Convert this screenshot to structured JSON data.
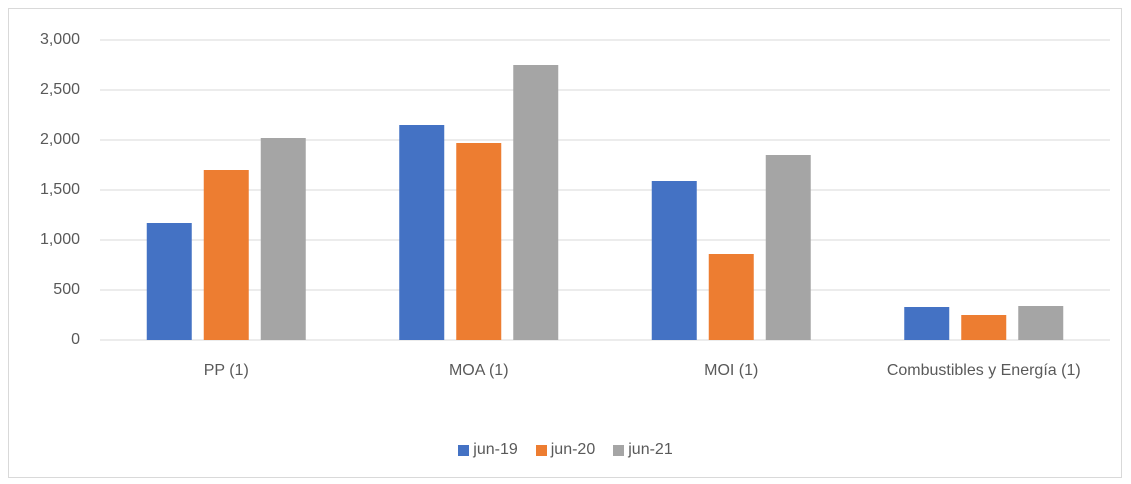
{
  "chart_data": {
    "type": "bar",
    "categories": [
      "PP  (1)",
      "MOA (1)",
      "MOI (1)",
      "Combustibles y Energía (1)"
    ],
    "series": [
      {
        "name": "jun-19",
        "color": "#4472c4",
        "values": [
          1170,
          2150,
          1590,
          330
        ]
      },
      {
        "name": "jun-20",
        "color": "#ed7d31",
        "values": [
          1700,
          1970,
          860,
          250
        ]
      },
      {
        "name": "jun-21",
        "color": "#a5a5a5",
        "values": [
          2020,
          2750,
          1850,
          340
        ]
      }
    ],
    "ylim": [
      0,
      3000
    ],
    "yticks": [
      0,
      500,
      {
        "value": 1000,
        "label": "1,000"
      },
      {
        "value": 1500,
        "label": "1,500"
      },
      {
        "value": 2000,
        "label": "2,000"
      },
      {
        "value": 2500,
        "label": "2,500"
      },
      {
        "value": 3000,
        "label": "3,000"
      }
    ],
    "grid": true,
    "legend": "bottom"
  }
}
